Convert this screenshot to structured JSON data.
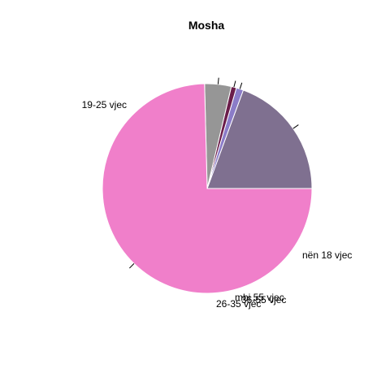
{
  "chart_data": {
    "type": "pie",
    "title": "Mosha",
    "slices": [
      {
        "label": "nën 18 vjec",
        "value": 19.4,
        "color": "#7f7090"
      },
      {
        "label": "36-55 vjec",
        "value": 1.1,
        "color": "#8b7cc8"
      },
      {
        "label": "mbi 55 vjec",
        "value": 0.8,
        "color": "#6b1d4a"
      },
      {
        "label": "26-35 vjec",
        "value": 4.1,
        "color": "#969696"
      },
      {
        "label": "19-25 vjec",
        "value": 74.6,
        "color": "#f07fca"
      }
    ]
  }
}
